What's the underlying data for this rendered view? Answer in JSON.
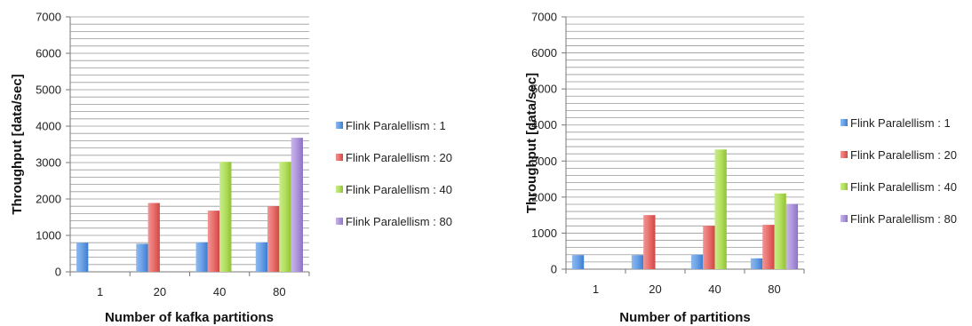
{
  "chart_data": [
    {
      "type": "bar",
      "title": "",
      "xlabel": "Number of kafka partitions",
      "ylabel": "Throughput [data/sec]",
      "ylim": [
        0,
        7000
      ],
      "yticks": [
        0,
        1000,
        2000,
        3000,
        4000,
        5000,
        6000,
        7000
      ],
      "grid": true,
      "legend_position": "right",
      "categories": [
        "1",
        "20",
        "40",
        "80"
      ],
      "series": [
        {
          "name": "Flink Paralellism : 1",
          "color": "#4f8fdc",
          "values": [
            800,
            770,
            810,
            810
          ]
        },
        {
          "name": "Flink Paralellism : 20",
          "color": "#e0504d",
          "values": [
            null,
            1890,
            1680,
            1800
          ]
        },
        {
          "name": "Flink Paralellism : 40",
          "color": "#9cc93f",
          "values": [
            null,
            null,
            3020,
            3020
          ]
        },
        {
          "name": "Flink Paralellism : 80",
          "color": "#8064a2",
          "values": [
            null,
            null,
            null,
            3680
          ]
        }
      ]
    },
    {
      "type": "bar",
      "title": "",
      "xlabel": "Number of partitions",
      "ylabel": "Throughput [data/sec]",
      "ylim": [
        0,
        7000
      ],
      "yticks": [
        0,
        1000,
        2000,
        3000,
        4000,
        5000,
        6000,
        7000
      ],
      "grid": true,
      "legend_position": "right",
      "categories": [
        "1",
        "20",
        "40",
        "80"
      ],
      "series": [
        {
          "name": "Flink Paralellism : 1",
          "color": "#4f8fdc",
          "values": [
            390,
            390,
            400,
            300
          ]
        },
        {
          "name": "Flink Paralellism : 20",
          "color": "#e0504d",
          "values": [
            null,
            1500,
            1200,
            1230
          ]
        },
        {
          "name": "Flink Paralellism : 40",
          "color": "#9cc93f",
          "values": [
            null,
            null,
            3320,
            2100
          ]
        },
        {
          "name": "Flink Paralellism : 80",
          "color": "#8064a2",
          "values": [
            null,
            null,
            null,
            1810
          ]
        }
      ]
    }
  ]
}
